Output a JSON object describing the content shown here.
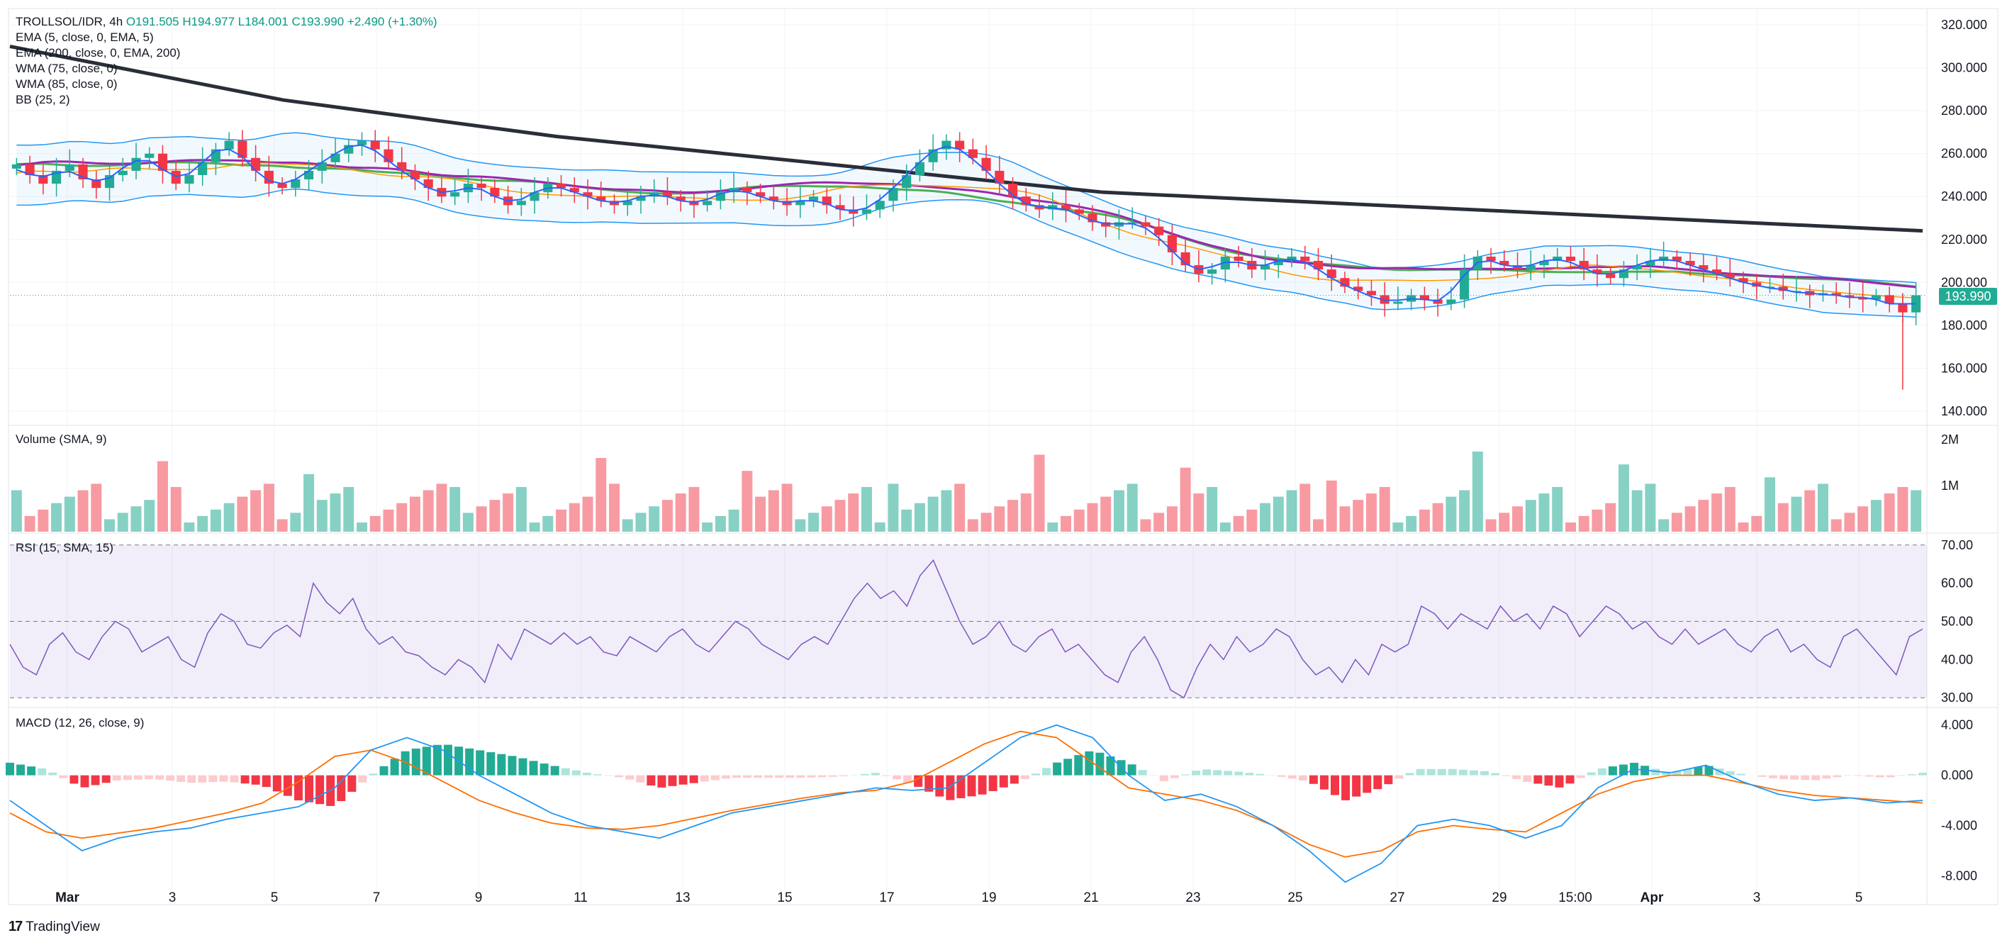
{
  "header": {
    "symbol": "TROLLSOL/IDR, 4h",
    "open": "O191.505",
    "high": "H194.977",
    "low": "L184.001",
    "close": "C193.990",
    "change": "+2.490 (+1.30%)"
  },
  "indicators": [
    "EMA (5, close, 0, EMA, 5)",
    "EMA (200, close, 0, EMA, 200)",
    "WMA (75, close, 0)",
    "WMA (85, close, 0)",
    "BB (25, 2)"
  ],
  "price_tag": "193.990",
  "panes": {
    "volume_title": "Volume (SMA, 9)",
    "rsi_title": "RSI (15, SMA, 15)",
    "macd_title": "MACD (12, 26, close, 9)"
  },
  "brand": "TradingView",
  "colors": {
    "up": "#22ab94",
    "down": "#f23645",
    "ema5": "#2962ff",
    "ema200": "#2a2e39",
    "wma75": "#9c27b0",
    "wma85": "#4caf50",
    "bb": "#2196f3",
    "rsi": "#7e57c2",
    "macd": "#2196f3",
    "signal": "#ff6d00"
  },
  "chart_data": [
    {
      "type": "candlestick",
      "pane": "price",
      "y_ticks": [
        "320.000",
        "300.000",
        "280.000",
        "260.000",
        "240.000",
        "220.000",
        "200.000",
        "180.000",
        "160.000",
        "140.000"
      ],
      "ylim": [
        135,
        325
      ],
      "x_ticks": [
        "Mar",
        "3",
        "5",
        "7",
        "9",
        "11",
        "13",
        "15",
        "17",
        "19",
        "21",
        "23",
        "25",
        "27",
        "29",
        "15:00",
        "Apr",
        "3",
        "5"
      ],
      "close_path": [
        255,
        250,
        246,
        252,
        255,
        248,
        244,
        250,
        252,
        258,
        260,
        252,
        246,
        250,
        256,
        262,
        266,
        258,
        252,
        246,
        244,
        248,
        252,
        256,
        260,
        264,
        266,
        262,
        256,
        252,
        248,
        244,
        240,
        242,
        246,
        244,
        240,
        236,
        238,
        242,
        246,
        244,
        242,
        240,
        238,
        236,
        238,
        240,
        242,
        240,
        238,
        236,
        238,
        242,
        244,
        242,
        240,
        238,
        236,
        238,
        240,
        236,
        234,
        232,
        234,
        238,
        244,
        250,
        256,
        262,
        266,
        262,
        258,
        252,
        246,
        240,
        236,
        234,
        236,
        234,
        232,
        228,
        226,
        228,
        228,
        226,
        222,
        214,
        208,
        204,
        206,
        212,
        210,
        206,
        208,
        210,
        212,
        210,
        206,
        202,
        198,
        196,
        194,
        190,
        191,
        194,
        192,
        190,
        192,
        206,
        212,
        210,
        208,
        206,
        208,
        210,
        212,
        210,
        206,
        204,
        202,
        206,
        208,
        210,
        212,
        210,
        208,
        206,
        204,
        202,
        200,
        198,
        198,
        196,
        196,
        194,
        195,
        194,
        193,
        192,
        194,
        190,
        186,
        194
      ],
      "ema200": [
        310,
        285,
        268,
        255,
        242,
        236,
        230,
        224
      ],
      "last_close": 193.99
    },
    {
      "type": "bar",
      "pane": "volume",
      "y_ticks": [
        "2M",
        "1M"
      ],
      "ylim": [
        0,
        2000000
      ]
    },
    {
      "type": "line",
      "pane": "rsi",
      "y_ticks": [
        "70.00",
        "60.00",
        "50.00",
        "40.00",
        "30.00"
      ],
      "ylim": [
        28,
        72
      ],
      "bands": [
        30,
        50,
        70
      ],
      "values": [
        44,
        38,
        36,
        44,
        47,
        42,
        40,
        46,
        50,
        48,
        42,
        44,
        46,
        40,
        38,
        47,
        52,
        50,
        44,
        43,
        47,
        49,
        46,
        60,
        55,
        52,
        56,
        48,
        44,
        46,
        42,
        41,
        38,
        36,
        40,
        38,
        34,
        44,
        40,
        48,
        46,
        44,
        47,
        44,
        46,
        42,
        41,
        46,
        44,
        42,
        46,
        48,
        44,
        42,
        46,
        50,
        48,
        44,
        42,
        40,
        44,
        46,
        44,
        50,
        56,
        60,
        56,
        58,
        54,
        62,
        66,
        58,
        50,
        44,
        46,
        50,
        44,
        42,
        46,
        48,
        42,
        44,
        40,
        36,
        34,
        42,
        46,
        40,
        32,
        30,
        38,
        44,
        40,
        46,
        42,
        44,
        48,
        46,
        40,
        36,
        38,
        34,
        40,
        36,
        44,
        42,
        44,
        54,
        52,
        48,
        52,
        50,
        48,
        54,
        50,
        52,
        48,
        54,
        52,
        46,
        50,
        54,
        52,
        48,
        50,
        46,
        44,
        48,
        44,
        46,
        48,
        44,
        42,
        46,
        48,
        42,
        44,
        40,
        38,
        46,
        48,
        44,
        40,
        36,
        46,
        48
      ]
    },
    {
      "type": "line",
      "pane": "macd",
      "y_ticks": [
        "4.000",
        "0.000",
        "-4.000",
        "-8.000"
      ],
      "ylim": [
        -9.5,
        5
      ],
      "macd": [
        -2,
        -4,
        -6,
        -5,
        -4.5,
        -4.2,
        -3.5,
        -3,
        -2.5,
        -1,
        2,
        3,
        2,
        0,
        -1.5,
        -3,
        -4,
        -4.5,
        -5,
        -4,
        -3,
        -2.5,
        -2,
        -1.5,
        -1,
        -1.2,
        -1,
        1,
        3,
        4,
        3,
        0,
        -2,
        -1.5,
        -2.5,
        -4,
        -6,
        -8.5,
        -7,
        -4,
        -3.5,
        -4,
        -5,
        -4,
        -1,
        0.5,
        0.2,
        0.8,
        -0.5,
        -1.5,
        -2,
        -1.8,
        -2.2,
        -2.0
      ],
      "signal": [
        -3,
        -4.5,
        -5,
        -4.6,
        -4.2,
        -3.6,
        -3,
        -2.2,
        -0.5,
        1.5,
        2,
        1,
        -0.5,
        -2,
        -3,
        -3.8,
        -4.2,
        -4.3,
        -4,
        -3.4,
        -2.8,
        -2.3,
        -1.8,
        -1.4,
        -1.2,
        -0.5,
        1,
        2.5,
        3.5,
        3,
        1,
        -1,
        -1.5,
        -2,
        -2.8,
        -4,
        -5.5,
        -6.5,
        -6,
        -4.5,
        -4,
        -4.3,
        -4.5,
        -3,
        -1.5,
        -0.5,
        0,
        0,
        -0.6,
        -1.2,
        -1.6,
        -1.8,
        -2.0,
        -2.2
      ]
    }
  ]
}
